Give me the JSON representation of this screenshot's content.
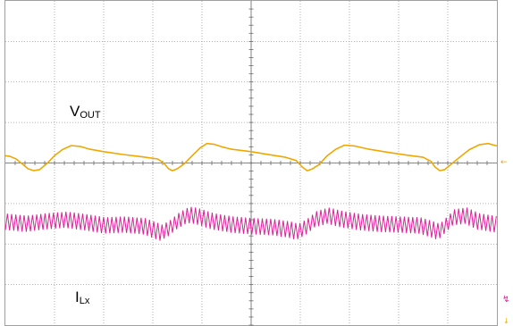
{
  "chart_data": {
    "type": "line",
    "title": "",
    "xlabel": "",
    "ylabel": "",
    "grid": true,
    "divisions": {
      "x": 10,
      "y": 8
    },
    "xlim": [
      0,
      10
    ],
    "ylim": [
      -4,
      4
    ],
    "series": [
      {
        "name": "VOUT",
        "label_main": "V",
        "label_sub": "OUT",
        "color": "#f0a800",
        "points": [
          [
            0.0,
            0.18
          ],
          [
            0.1,
            0.16
          ],
          [
            0.22,
            0.1
          ],
          [
            0.34,
            -0.02
          ],
          [
            0.46,
            -0.14
          ],
          [
            0.58,
            -0.19
          ],
          [
            0.7,
            -0.16
          ],
          [
            0.84,
            -0.02
          ],
          [
            1.0,
            0.18
          ],
          [
            1.16,
            0.33
          ],
          [
            1.34,
            0.43
          ],
          [
            1.52,
            0.41
          ],
          [
            1.72,
            0.34
          ],
          [
            2.0,
            0.28
          ],
          [
            2.4,
            0.21
          ],
          [
            2.8,
            0.15
          ],
          [
            3.1,
            0.1
          ],
          [
            3.22,
            0.0
          ],
          [
            3.32,
            -0.14
          ],
          [
            3.4,
            -0.19
          ],
          [
            3.5,
            -0.14
          ],
          [
            3.64,
            -0.02
          ],
          [
            3.8,
            0.18
          ],
          [
            3.96,
            0.37
          ],
          [
            4.1,
            0.48
          ],
          [
            4.25,
            0.46
          ],
          [
            4.4,
            0.4
          ],
          [
            4.6,
            0.34
          ],
          [
            5.0,
            0.28
          ],
          [
            5.4,
            0.2
          ],
          [
            5.7,
            0.14
          ],
          [
            5.92,
            0.06
          ],
          [
            6.04,
            -0.1
          ],
          [
            6.14,
            -0.19
          ],
          [
            6.24,
            -0.15
          ],
          [
            6.38,
            -0.04
          ],
          [
            6.54,
            0.17
          ],
          [
            6.72,
            0.34
          ],
          [
            6.9,
            0.44
          ],
          [
            7.1,
            0.42
          ],
          [
            7.4,
            0.34
          ],
          [
            7.8,
            0.26
          ],
          [
            8.2,
            0.19
          ],
          [
            8.5,
            0.14
          ],
          [
            8.66,
            0.04
          ],
          [
            8.74,
            -0.1
          ],
          [
            8.84,
            -0.19
          ],
          [
            8.94,
            -0.16
          ],
          [
            9.08,
            -0.02
          ],
          [
            9.26,
            0.16
          ],
          [
            9.44,
            0.33
          ],
          [
            9.64,
            0.45
          ],
          [
            9.82,
            0.48
          ],
          [
            10.0,
            0.42
          ]
        ]
      },
      {
        "name": "ILx",
        "label_main": "I",
        "label_sub": "Lx",
        "color": "#e0209a",
        "center_points": [
          [
            0.0,
            -1.45
          ],
          [
            0.4,
            -1.5
          ],
          [
            0.8,
            -1.44
          ],
          [
            1.2,
            -1.4
          ],
          [
            1.6,
            -1.46
          ],
          [
            2.0,
            -1.54
          ],
          [
            2.4,
            -1.52
          ],
          [
            2.8,
            -1.56
          ],
          [
            3.15,
            -1.72
          ],
          [
            3.3,
            -1.62
          ],
          [
            3.5,
            -1.42
          ],
          [
            3.7,
            -1.28
          ],
          [
            3.85,
            -1.3
          ],
          [
            4.2,
            -1.44
          ],
          [
            4.6,
            -1.52
          ],
          [
            5.0,
            -1.56
          ],
          [
            5.4,
            -1.58
          ],
          [
            5.75,
            -1.64
          ],
          [
            5.92,
            -1.7
          ],
          [
            6.1,
            -1.58
          ],
          [
            6.3,
            -1.38
          ],
          [
            6.55,
            -1.3
          ],
          [
            6.8,
            -1.38
          ],
          [
            7.2,
            -1.46
          ],
          [
            7.6,
            -1.5
          ],
          [
            8.0,
            -1.52
          ],
          [
            8.4,
            -1.54
          ],
          [
            8.62,
            -1.62
          ],
          [
            8.8,
            -1.7
          ],
          [
            8.95,
            -1.52
          ],
          [
            9.1,
            -1.34
          ],
          [
            9.35,
            -1.3
          ],
          [
            9.6,
            -1.44
          ],
          [
            10.0,
            -1.52
          ]
        ],
        "ripple_amplitude": 0.2
      }
    ],
    "markers": {
      "trigger_level": "←",
      "channel_ref": "↯",
      "offset": "↓"
    }
  }
}
